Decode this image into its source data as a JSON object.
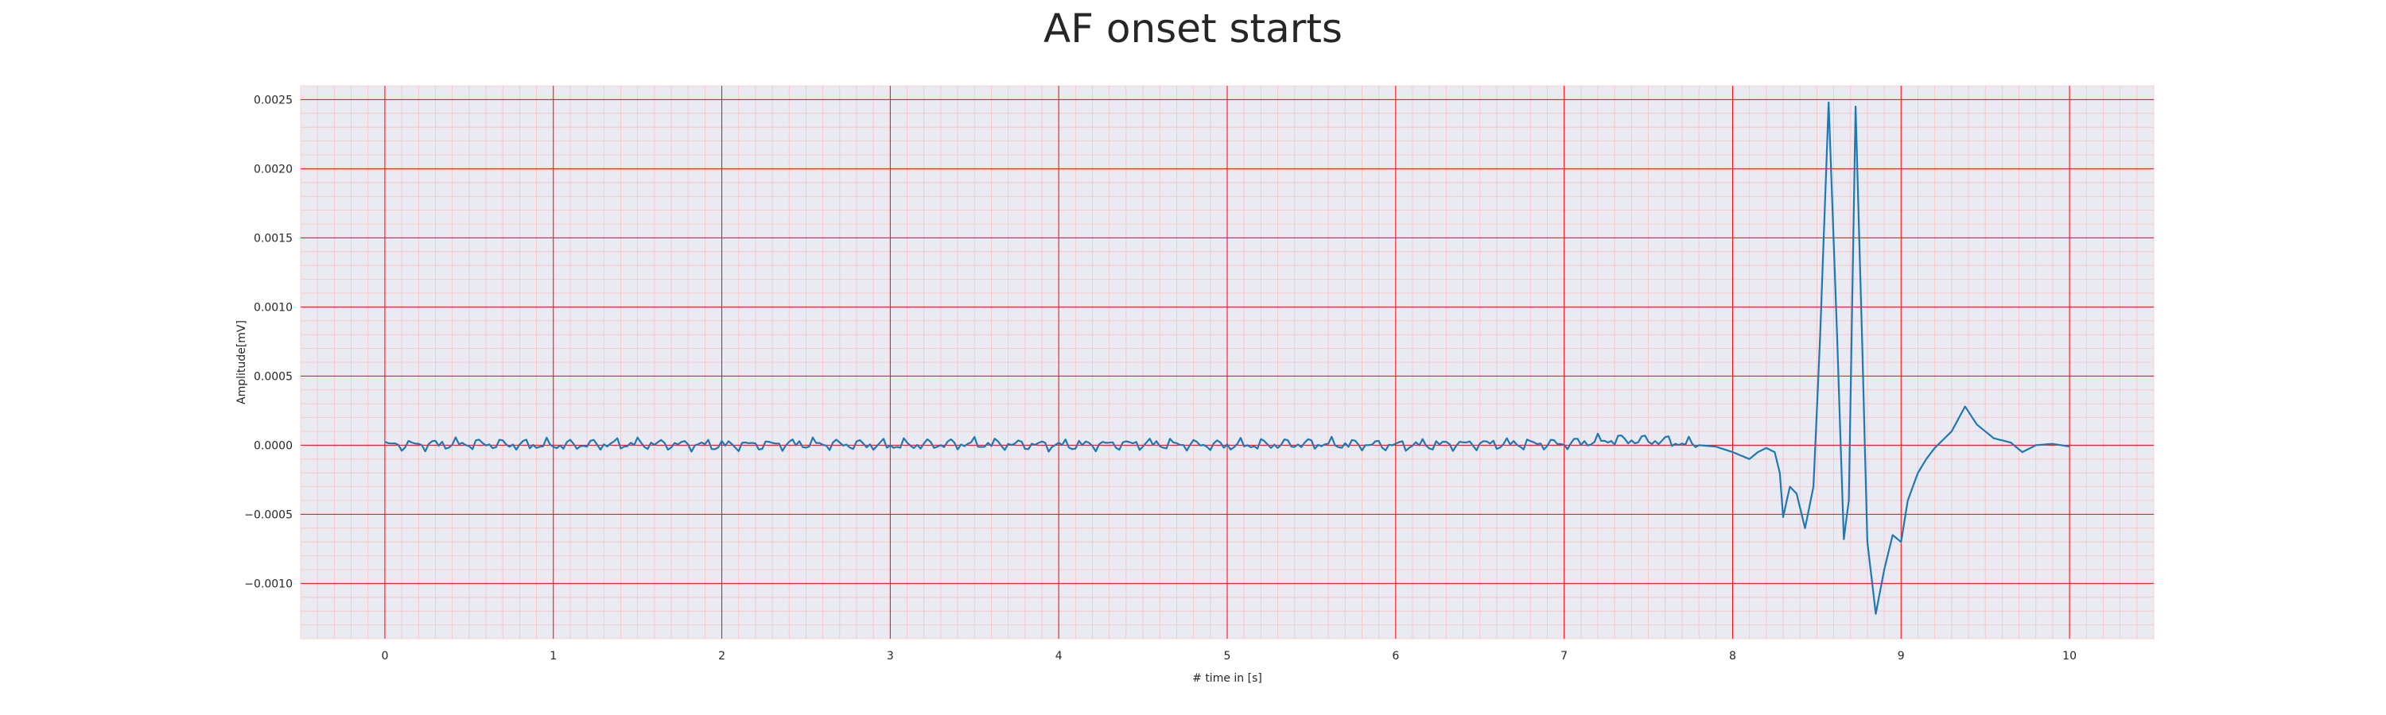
{
  "chart_data": {
    "type": "line",
    "title": "AF onset starts",
    "xlabel": "# time in [s]",
    "ylabel": "Amplitude[mV]",
    "xlim": [
      -0.5,
      10.5
    ],
    "ylim": [
      -0.0014,
      0.0026
    ],
    "xticks": [
      0,
      1,
      2,
      3,
      4,
      5,
      6,
      7,
      8,
      9,
      10
    ],
    "xtick_labels": [
      "0",
      "1",
      "2",
      "3",
      "4",
      "5",
      "6",
      "7",
      "8",
      "9",
      "10"
    ],
    "yticks": [
      -0.001,
      -0.0005,
      0.0,
      0.0005,
      0.001,
      0.0015,
      0.002,
      0.0025
    ],
    "ytick_labels": [
      "−0.0010",
      "−0.0005",
      "0.0000",
      "0.0005",
      "0.0010",
      "0.0015",
      "0.0020",
      "0.0025"
    ],
    "grid": true,
    "minor_grid": true,
    "background_color": "#eaeaf2",
    "major_grid_color": "#ff0000",
    "minor_grid_color": "#ffb0b0",
    "line_color": "#1f77b4",
    "series": [
      {
        "points": [
          [
            0.0,
            0.0
          ],
          [
            0.5,
            1e-05
          ],
          [
            1.0,
            0.0
          ],
          [
            1.5,
            1e-05
          ],
          [
            2.0,
            0.0
          ],
          [
            2.5,
            1e-05
          ],
          [
            3.0,
            0.0
          ],
          [
            3.5,
            1e-05
          ],
          [
            4.0,
            0.0
          ],
          [
            4.5,
            1e-05
          ],
          [
            5.0,
            0.0
          ],
          [
            5.5,
            1e-05
          ],
          [
            6.0,
            0.0
          ],
          [
            6.5,
            1e-05
          ],
          [
            7.0,
            1e-05
          ],
          [
            7.3,
            4e-05
          ],
          [
            7.6,
            3e-05
          ],
          [
            7.8,
            0.0
          ],
          [
            7.9,
            -1e-05
          ],
          [
            8.0,
            -5e-05
          ],
          [
            8.1,
            -0.0001
          ],
          [
            8.15,
            -5e-05
          ],
          [
            8.2,
            -2e-05
          ],
          [
            8.25,
            -5e-05
          ],
          [
            8.28,
            -0.0002
          ],
          [
            8.3,
            -0.00052
          ],
          [
            8.34,
            -0.0003
          ],
          [
            8.38,
            -0.00035
          ],
          [
            8.43,
            -0.0006
          ],
          [
            8.48,
            -0.0003
          ],
          [
            8.52,
            0.0008
          ],
          [
            8.57,
            0.00248
          ],
          [
            8.62,
            0.0008
          ],
          [
            8.66,
            -0.00068
          ],
          [
            8.69,
            -0.0004
          ],
          [
            8.73,
            0.00245
          ],
          [
            8.77,
            0.0007
          ],
          [
            8.8,
            -0.0007
          ],
          [
            8.85,
            -0.00122
          ],
          [
            8.9,
            -0.0009
          ],
          [
            8.95,
            -0.00065
          ],
          [
            9.0,
            -0.0007
          ],
          [
            9.04,
            -0.0004
          ],
          [
            9.1,
            -0.0002
          ],
          [
            9.15,
            -0.0001
          ],
          [
            9.2,
            -2e-05
          ],
          [
            9.3,
            0.0001
          ],
          [
            9.38,
            0.00028
          ],
          [
            9.45,
            0.00015
          ],
          [
            9.55,
            5e-05
          ],
          [
            9.65,
            2e-05
          ],
          [
            9.72,
            -5e-05
          ],
          [
            9.8,
            0.0
          ],
          [
            9.9,
            1e-05
          ],
          [
            10.0,
            -1e-05
          ]
        ]
      }
    ]
  }
}
